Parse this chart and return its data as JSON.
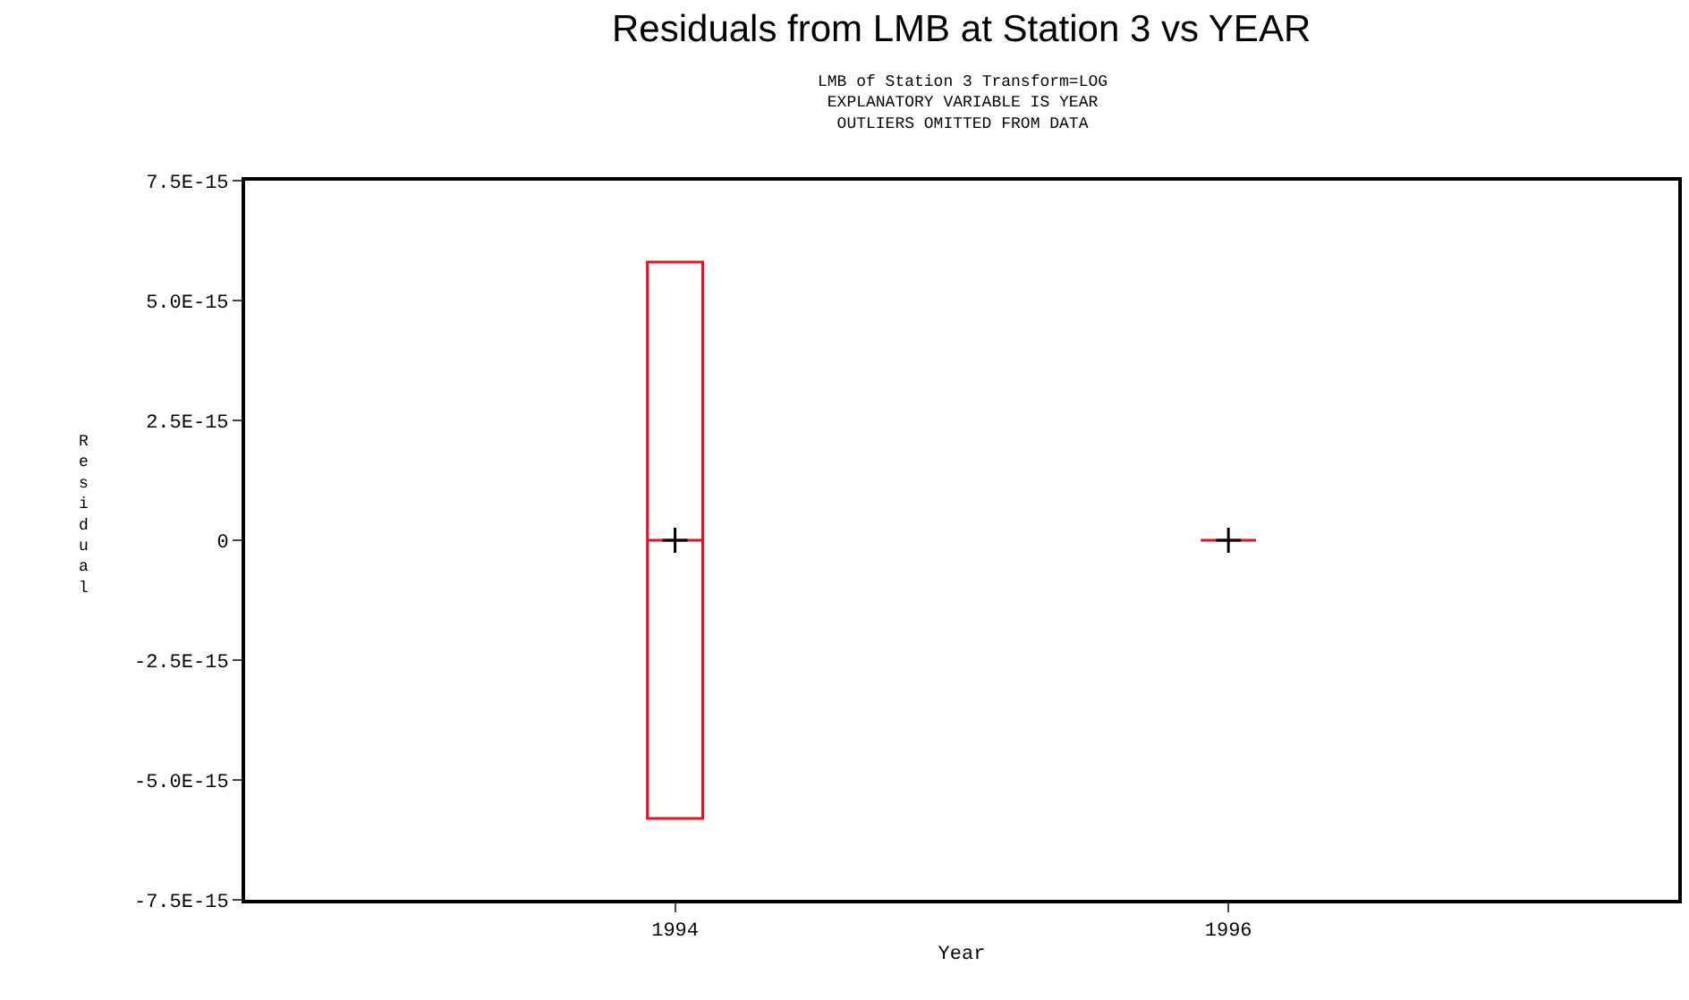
{
  "chart_data": {
    "type": "box",
    "title": "Residuals from LMB at Station 3 vs YEAR",
    "subtitle": "LMB of Station 3 Transform=LOG\nEXPLANATORY VARIABLE IS YEAR\nOUTLIERS OMITTED FROM DATA",
    "xlabel": "Year",
    "ylabel": "Residual",
    "categories": [
      "1994",
      "1996"
    ],
    "series": [
      {
        "color": "#e0141e",
        "boxes": [
          {
            "q1": -5.8e-15,
            "median": 0,
            "q3": 5.8e-15,
            "mean": 0
          },
          {
            "q1": 0,
            "median": 0,
            "q3": 0,
            "mean": 0
          }
        ]
      }
    ],
    "ylim": [
      -7.5e-15,
      7.5e-15
    ],
    "yticks": [
      {
        "value": -7.5e-15,
        "label": "-7.5E-15"
      },
      {
        "value": -5e-15,
        "label": "-5.0E-15"
      },
      {
        "value": -2.5e-15,
        "label": "-2.5E-15"
      },
      0,
      {
        "value": 2.5e-15,
        "label": "2.5E-15"
      },
      {
        "value": 5e-15,
        "label": "5.0E-15"
      },
      {
        "value": 7.5e-15,
        "label": "7.5E-15"
      }
    ]
  }
}
